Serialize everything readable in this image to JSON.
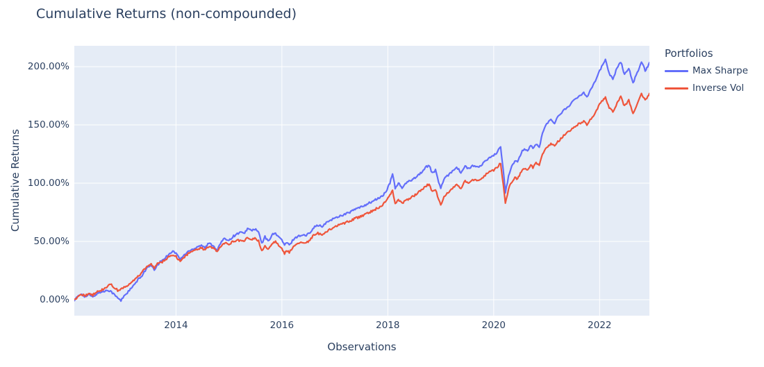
{
  "title": "Cumulative Returns (non-compounded)",
  "x_axis": {
    "label": "Observations",
    "tick_labels": [
      "2014",
      "2016",
      "2018",
      "2020",
      "2022"
    ],
    "tick_values": [
      2014,
      2016,
      2018,
      2020,
      2022
    ]
  },
  "y_axis": {
    "label": "Cumulative Returns",
    "tick_labels": [
      "0.00%",
      "50.00%",
      "100.00%",
      "150.00%",
      "200.00%"
    ],
    "tick_values": [
      0,
      50,
      100,
      150,
      200
    ]
  },
  "legend": {
    "title": "Portfolios",
    "items": [
      {
        "label": "Max Sharpe",
        "color": "#636efa"
      },
      {
        "label": "Inverse Vol",
        "color": "#ef553b"
      }
    ]
  },
  "colors": {
    "text": "#2a3f5f",
    "plot_bg": "#e5ecf6",
    "grid": "#ffffff",
    "page_bg": "#ffffff",
    "max_sharpe": "#636efa",
    "inverse_vol": "#ef553b"
  },
  "chart_data": {
    "type": "line",
    "title": "Cumulative Returns (non-compounded)",
    "xlabel": "Observations",
    "ylabel": "Cumulative Returns",
    "x_unit": "decimal_year",
    "y_unit": "percent",
    "xlim": [
      2012.08,
      2022.94
    ],
    "ylim": [
      -13.7,
      217.9
    ],
    "grid": true,
    "legend_position": "right",
    "x": [
      2012.08,
      2012.16,
      2012.22,
      2012.29,
      2012.36,
      2012.43,
      2012.5,
      2012.57,
      2012.64,
      2012.71,
      2012.78,
      2012.84,
      2012.9,
      2012.96,
      2013.02,
      2013.08,
      2013.14,
      2013.21,
      2013.28,
      2013.34,
      2013.4,
      2013.47,
      2013.53,
      2013.59,
      2013.65,
      2013.72,
      2013.8,
      2013.88,
      2013.94,
      2014.0,
      2014.08,
      2014.16,
      2014.23,
      2014.31,
      2014.4,
      2014.48,
      2014.55,
      2014.62,
      2014.7,
      2014.78,
      2014.86,
      2014.93,
      2015.0,
      2015.07,
      2015.14,
      2015.21,
      2015.28,
      2015.35,
      2015.42,
      2015.49,
      2015.56,
      2015.62,
      2015.68,
      2015.74,
      2015.81,
      2015.88,
      2015.94,
      2016.0,
      2016.05,
      2016.1,
      2016.14,
      2016.22,
      2016.3,
      2016.38,
      2016.46,
      2016.53,
      2016.6,
      2016.68,
      2016.76,
      2016.84,
      2016.92,
      2017.0,
      2017.1,
      2017.2,
      2017.3,
      2017.4,
      2017.5,
      2017.6,
      2017.7,
      2017.8,
      2017.9,
      2017.97,
      2018.04,
      2018.09,
      2018.14,
      2018.2,
      2018.27,
      2018.35,
      2018.45,
      2018.55,
      2018.65,
      2018.73,
      2018.78,
      2018.84,
      2018.9,
      2018.96,
      2019.0,
      2019.06,
      2019.14,
      2019.22,
      2019.3,
      2019.38,
      2019.46,
      2019.54,
      2019.6,
      2019.68,
      2019.76,
      2019.84,
      2019.92,
      2020.0,
      2020.07,
      2020.13,
      2020.18,
      2020.22,
      2020.28,
      2020.34,
      2020.4,
      2020.45,
      2020.52,
      2020.58,
      2020.64,
      2020.7,
      2020.74,
      2020.8,
      2020.86,
      2020.92,
      2021.0,
      2021.08,
      2021.15,
      2021.23,
      2021.32,
      2021.4,
      2021.48,
      2021.56,
      2021.64,
      2021.7,
      2021.76,
      2021.84,
      2021.92,
      2022.0,
      2022.06,
      2022.11,
      2022.18,
      2022.25,
      2022.33,
      2022.4,
      2022.47,
      2022.55,
      2022.63,
      2022.71,
      2022.79,
      2022.86,
      2022.91,
      2022.94
    ],
    "series": [
      {
        "name": "Max Sharpe",
        "color": "#636efa",
        "y": [
          0,
          3,
          5,
          2.5,
          4.5,
          2,
          5,
          6.5,
          7,
          8.5,
          7,
          4,
          1.5,
          -1,
          3.5,
          6,
          9,
          12.5,
          17,
          19.5,
          24,
          28,
          29,
          25.5,
          30,
          33,
          36,
          40,
          41.5,
          40,
          34.5,
          38.5,
          41.5,
          43,
          45.5,
          47,
          44.5,
          48.5,
          46.5,
          42.5,
          50,
          52.5,
          51,
          54,
          56,
          58,
          56.5,
          61,
          59.5,
          60.5,
          58,
          48,
          54,
          50,
          55.5,
          57,
          54,
          51,
          47,
          49,
          46.5,
          52,
          54.5,
          55.5,
          55,
          58,
          62,
          64,
          62.5,
          66,
          68.5,
          70,
          72,
          73.5,
          75.5,
          78,
          79.5,
          82,
          84,
          86.5,
          89,
          93,
          100,
          108,
          96,
          100,
          96,
          100,
          103,
          106,
          110,
          114,
          115.5,
          108.5,
          111,
          101,
          96,
          103,
          107,
          110.5,
          114,
          109,
          114.5,
          112,
          115.5,
          113.5,
          115,
          119,
          121.5,
          123.5,
          127,
          130.5,
          112,
          92,
          106,
          114,
          119.5,
          117.5,
          126,
          130,
          127.5,
          133,
          129.5,
          133.5,
          130.5,
          143,
          151,
          154.5,
          152,
          158,
          162.5,
          165.5,
          169.5,
          172.5,
          175.5,
          178,
          174,
          181.5,
          188,
          196.5,
          201.5,
          206,
          194.5,
          189.5,
          199,
          204,
          193.5,
          199,
          186,
          194.5,
          204.5,
          197,
          200,
          203.5
        ]
      },
      {
        "name": "Inverse Vol",
        "color": "#ef553b",
        "y": [
          0,
          3,
          4.5,
          3.5,
          5.5,
          4,
          6.5,
          7.5,
          9.5,
          11.5,
          13,
          10,
          8,
          8.5,
          10.5,
          11.5,
          14,
          16.5,
          20,
          22,
          26,
          29,
          30.5,
          27,
          31,
          32,
          34,
          37.5,
          38.5,
          37,
          32.5,
          36.5,
          39.5,
          41,
          43,
          44.5,
          42.5,
          46,
          44.5,
          41,
          47,
          48.5,
          47.5,
          49.5,
          50.5,
          51,
          50,
          53,
          52,
          52.5,
          50.5,
          41.5,
          46.5,
          42.5,
          48.5,
          49.5,
          47,
          44.5,
          39.5,
          42,
          40.5,
          46,
          48,
          49,
          48.5,
          51.5,
          55.5,
          57,
          55.5,
          58.5,
          60.5,
          62.5,
          64.5,
          66,
          68,
          70,
          71.5,
          74,
          76,
          78.5,
          81,
          85,
          90,
          94,
          82,
          86,
          82.5,
          85.5,
          88,
          91,
          94.5,
          98,
          99,
          93,
          95,
          86,
          81.5,
          88,
          92,
          95.5,
          99.5,
          95,
          102,
          99.5,
          103,
          102,
          103.5,
          107,
          109.5,
          111,
          114,
          117.5,
          99,
          83,
          95,
          101,
          105,
          103.5,
          110,
          113,
          111.5,
          116,
          113.5,
          117.5,
          115.5,
          124.5,
          131,
          133.5,
          132,
          136.5,
          140.5,
          143.5,
          147,
          149.5,
          151.5,
          153,
          150,
          155.5,
          160.5,
          167.5,
          171.5,
          173.5,
          164.5,
          161,
          169,
          174,
          166,
          171,
          160,
          168,
          177,
          171,
          174,
          177
        ]
      }
    ]
  }
}
